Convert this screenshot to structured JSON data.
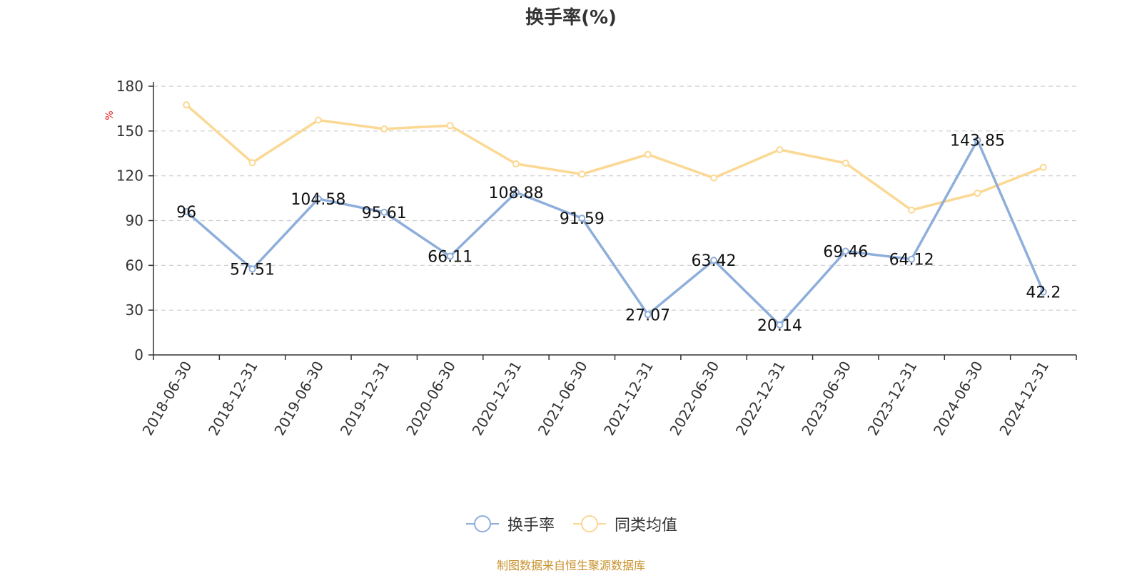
{
  "chart_data": {
    "type": "line",
    "title": "换手率(%)",
    "ylabel": "%",
    "xlabel": "",
    "ylim": [
      0,
      180
    ],
    "yticks": [
      0,
      30,
      60,
      90,
      120,
      150,
      180
    ],
    "grid": true,
    "legend_position": "bottom-center",
    "categories": [
      "2018-06-30",
      "2018-12-31",
      "2019-06-30",
      "2019-12-31",
      "2020-06-30",
      "2020-12-31",
      "2021-06-30",
      "2021-12-31",
      "2022-06-30",
      "2022-12-31",
      "2023-06-30",
      "2023-12-31",
      "2024-06-30",
      "2024-12-31"
    ],
    "series": [
      {
        "name": "换手率",
        "color": "#8eaedb",
        "values": [
          96,
          57.51,
          104.58,
          95.61,
          66.11,
          108.88,
          91.59,
          27.07,
          63.42,
          20.14,
          69.46,
          64.12,
          143.85,
          42.2
        ],
        "labels": [
          "96",
          "57.51",
          "104.58",
          "95.61",
          "66.11",
          "108.88",
          "91.59",
          "27.07",
          "63.42",
          "20.14",
          "69.46",
          "64.12",
          "143.85",
          "42.2"
        ]
      },
      {
        "name": "同类均值",
        "color": "#fbd893",
        "values": [
          167.5,
          128.8,
          157.3,
          151.4,
          153.6,
          128.0,
          121.1,
          134.3,
          118.6,
          137.5,
          128.5,
          97.0,
          108.3,
          125.7
        ]
      }
    ]
  },
  "source_note": "制图数据来自恒生聚源数据库"
}
